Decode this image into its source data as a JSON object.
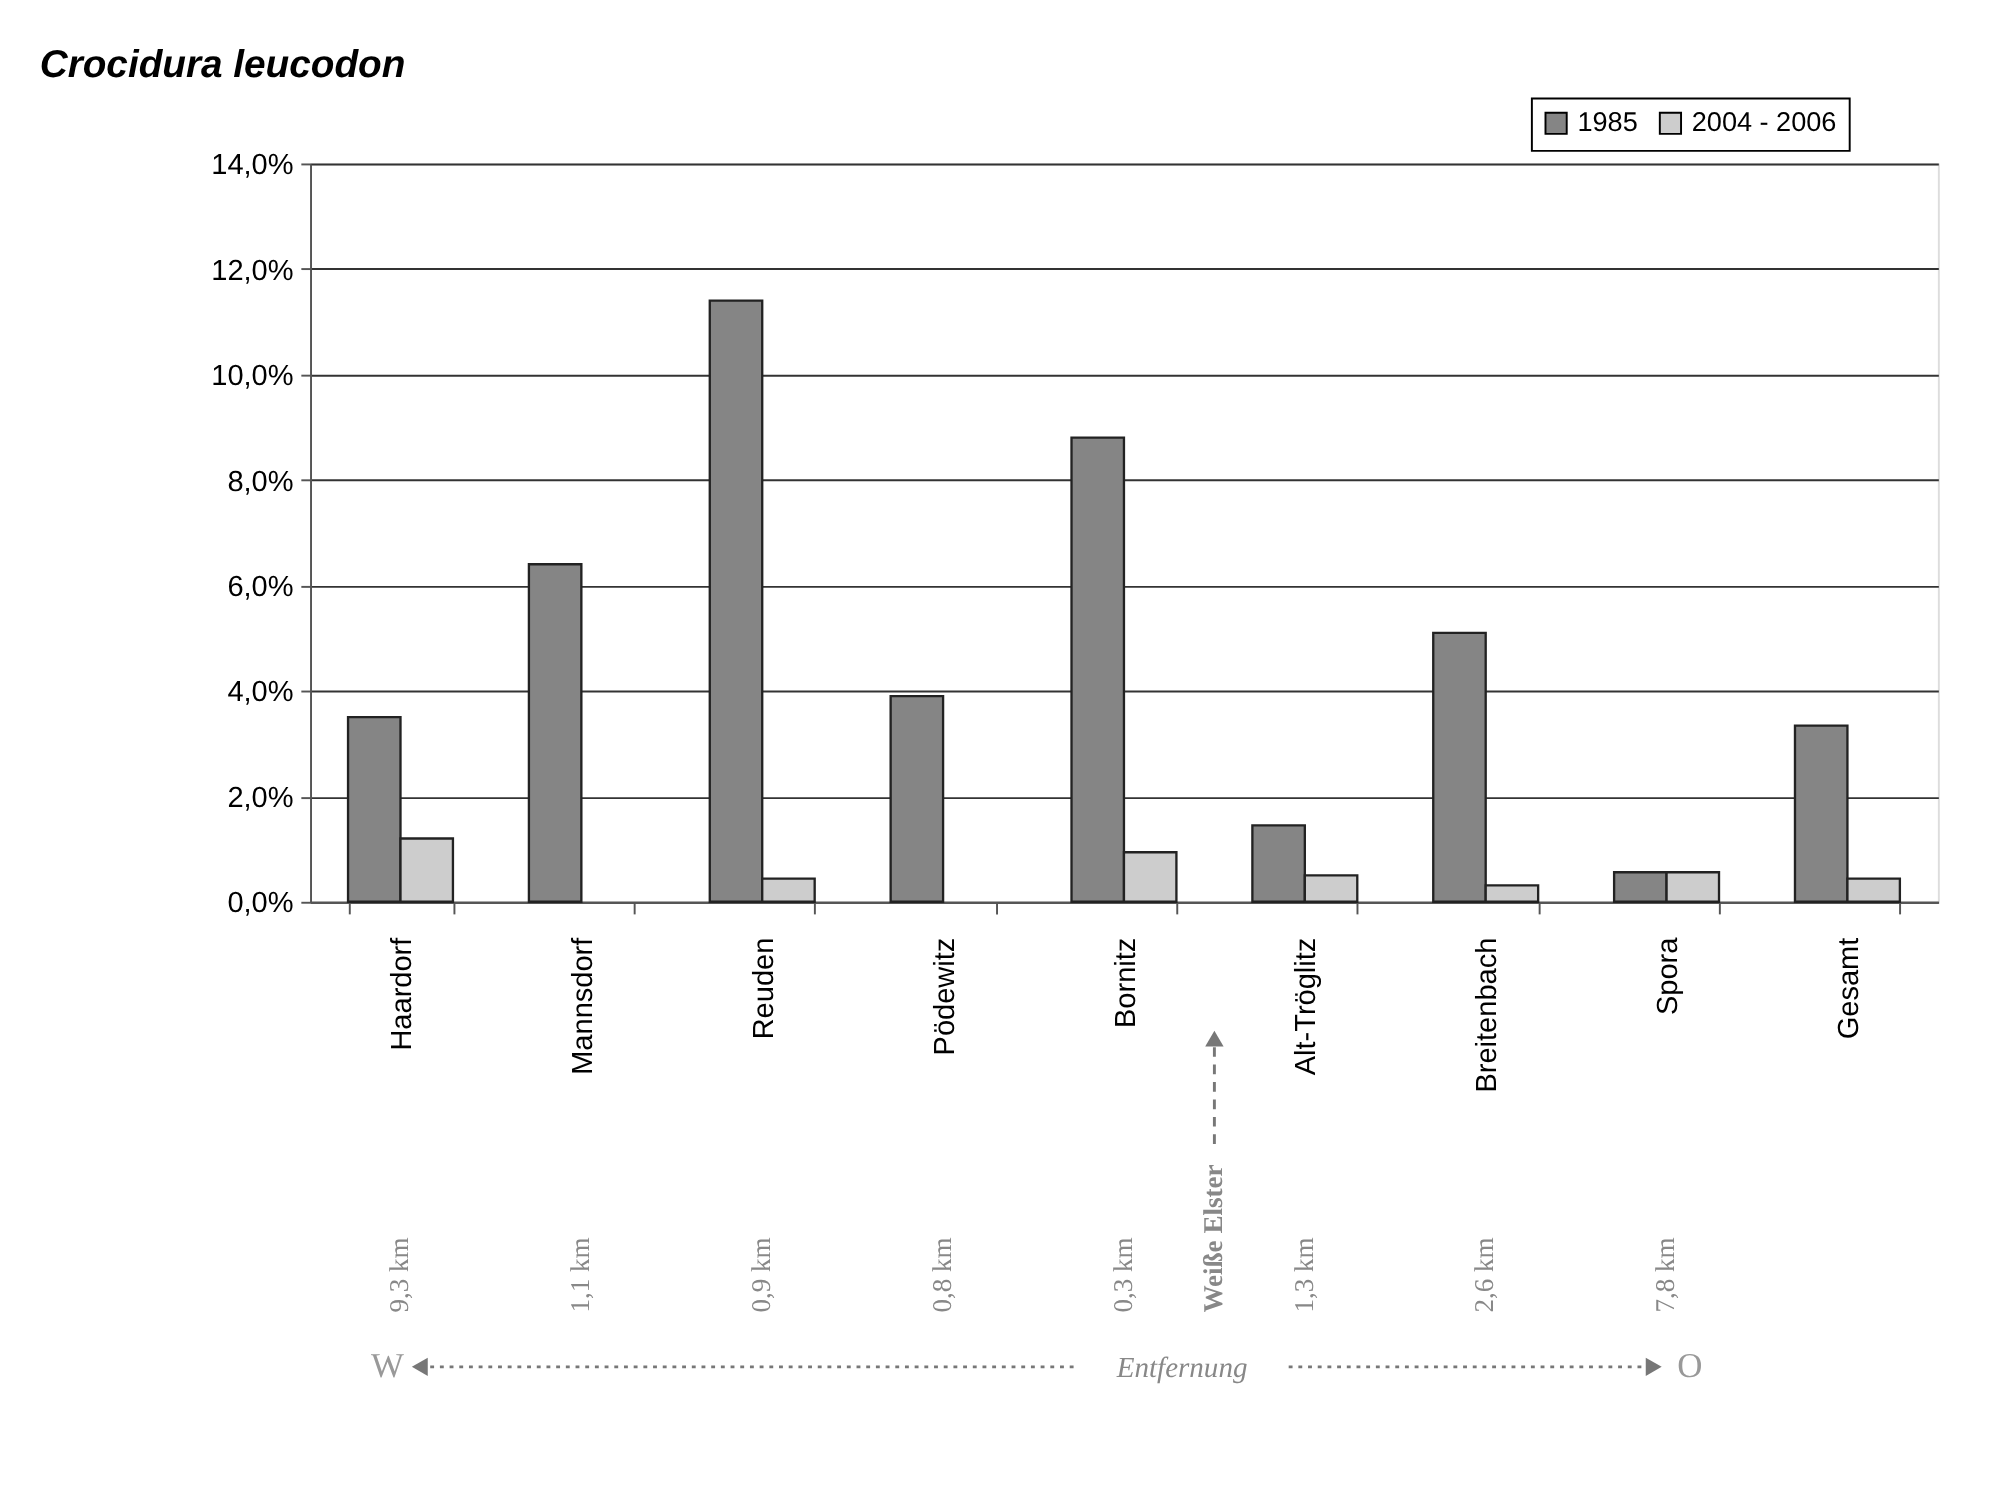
{
  "chart_data": {
    "type": "bar",
    "title": "Crocidura leucodon",
    "categories": [
      "Haardorf",
      "Mannsdorf",
      "Reuden",
      "Pödewitz",
      "Bornitz",
      "Alt-Tröglitz",
      "Breitenbach",
      "Spora",
      "Gesamt"
    ],
    "series": [
      {
        "name": "1985",
        "color": "#858585",
        "values": [
          3.5,
          6.4,
          11.4,
          3.9,
          8.8,
          1.45,
          5.1,
          0.56,
          3.34
        ]
      },
      {
        "name": "2004 - 2006",
        "color": "#cdcdcd",
        "values": [
          1.2,
          null,
          0.44,
          null,
          0.94,
          0.5,
          0.31,
          0.56,
          0.44
        ]
      }
    ],
    "ylim": [
      0,
      14
    ],
    "yticks": [
      {
        "value": 0,
        "label": "0,0%"
      },
      {
        "value": 2,
        "label": "2,0%"
      },
      {
        "value": 4,
        "label": "4,0%"
      },
      {
        "value": 6,
        "label": "6,0%"
      },
      {
        "value": 8,
        "label": "8,0%"
      },
      {
        "value": 10,
        "label": "10,0%"
      },
      {
        "value": 12,
        "label": "12,0%"
      },
      {
        "value": 14,
        "label": "14,0%"
      }
    ],
    "grid": "y",
    "legend": "top right",
    "annotations": [
      "9,3 km",
      "1,1 km",
      "0,9 km",
      "0,8 km",
      "0,3 km",
      "1,3 km",
      "2,6 km",
      "7,8 km",
      "Weiße Elster",
      "W",
      "Entfernung",
      "O"
    ]
  }
}
